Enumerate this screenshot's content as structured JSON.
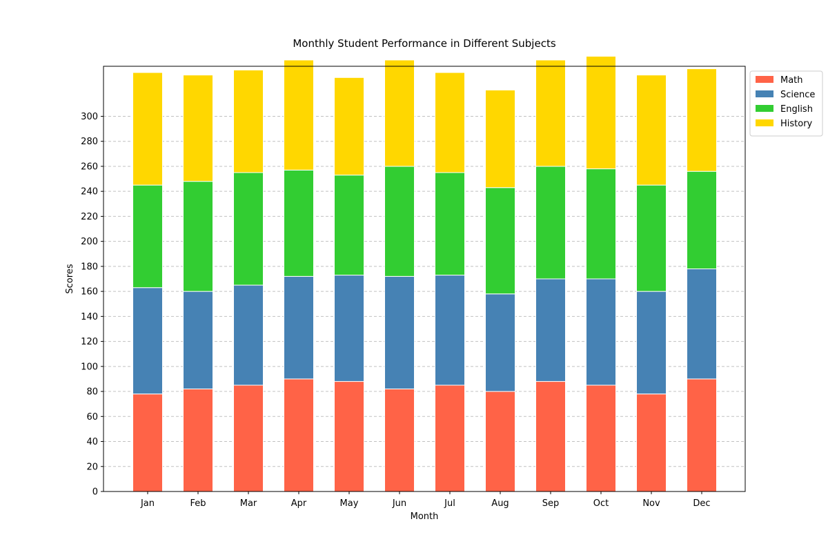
{
  "chart_data": {
    "type": "bar",
    "stacked": true,
    "title": "Monthly Student Performance in Different Subjects",
    "xlabel": "Month",
    "ylabel": "Scores",
    "ylim": [
      0,
      340
    ],
    "yticks": [
      0,
      20,
      40,
      60,
      80,
      100,
      120,
      140,
      160,
      180,
      200,
      220,
      240,
      260,
      280,
      300
    ],
    "grid": "horizontal dashed",
    "legend": "outside-top-right",
    "categories": [
      "Jan",
      "Feb",
      "Mar",
      "Apr",
      "May",
      "Jun",
      "Jul",
      "Aug",
      "Sep",
      "Oct",
      "Nov",
      "Dec"
    ],
    "series": [
      {
        "name": "Math",
        "color": "#ff6347",
        "values": [
          78,
          82,
          85,
          90,
          88,
          82,
          85,
          80,
          88,
          85,
          78,
          90
        ]
      },
      {
        "name": "Science",
        "color": "#4682b4",
        "values": [
          85,
          78,
          80,
          82,
          85,
          90,
          88,
          78,
          82,
          85,
          82,
          88
        ]
      },
      {
        "name": "English",
        "color": "#32cd32",
        "values": [
          82,
          88,
          90,
          85,
          80,
          88,
          82,
          85,
          90,
          88,
          85,
          78
        ]
      },
      {
        "name": "History",
        "color": "#ffd700",
        "values": [
          90,
          85,
          82,
          88,
          78,
          85,
          80,
          78,
          85,
          90,
          88,
          82
        ]
      }
    ]
  }
}
